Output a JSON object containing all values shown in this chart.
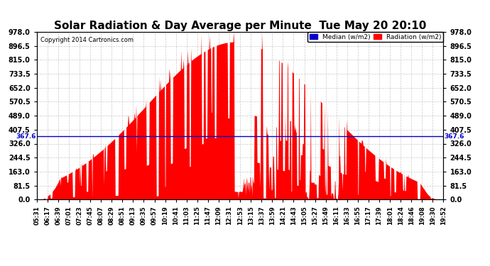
{
  "title": "Solar Radiation & Day Average per Minute  Tue May 20 20:10",
  "copyright": "Copyright 2014 Cartronics.com",
  "median_value": 367.6,
  "y_ticks": [
    0.0,
    81.5,
    163.0,
    244.5,
    326.0,
    407.5,
    489.0,
    570.5,
    652.0,
    733.5,
    815.0,
    896.5,
    978.0
  ],
  "y_max": 978.0,
  "y_min": 0.0,
  "bar_color": "#FF0000",
  "median_color": "#0000CC",
  "background_color": "#FFFFFF",
  "plot_bg_color": "#FFFFFF",
  "grid_color": "#BBBBBB",
  "title_fontsize": 11,
  "legend_median_color": "#0000CC",
  "legend_radiation_color": "#FF0000",
  "x_labels": [
    "05:31",
    "06:17",
    "06:39",
    "07:01",
    "07:23",
    "07:45",
    "08:07",
    "08:29",
    "08:51",
    "09:13",
    "09:35",
    "09:57",
    "10:19",
    "10:41",
    "11:03",
    "11:25",
    "11:47",
    "12:09",
    "12:31",
    "12:53",
    "13:15",
    "13:37",
    "13:59",
    "14:21",
    "14:43",
    "15:05",
    "15:27",
    "15:49",
    "16:11",
    "16:33",
    "16:55",
    "17:17",
    "17:39",
    "18:01",
    "18:24",
    "18:46",
    "19:08",
    "19:30",
    "19:52"
  ]
}
